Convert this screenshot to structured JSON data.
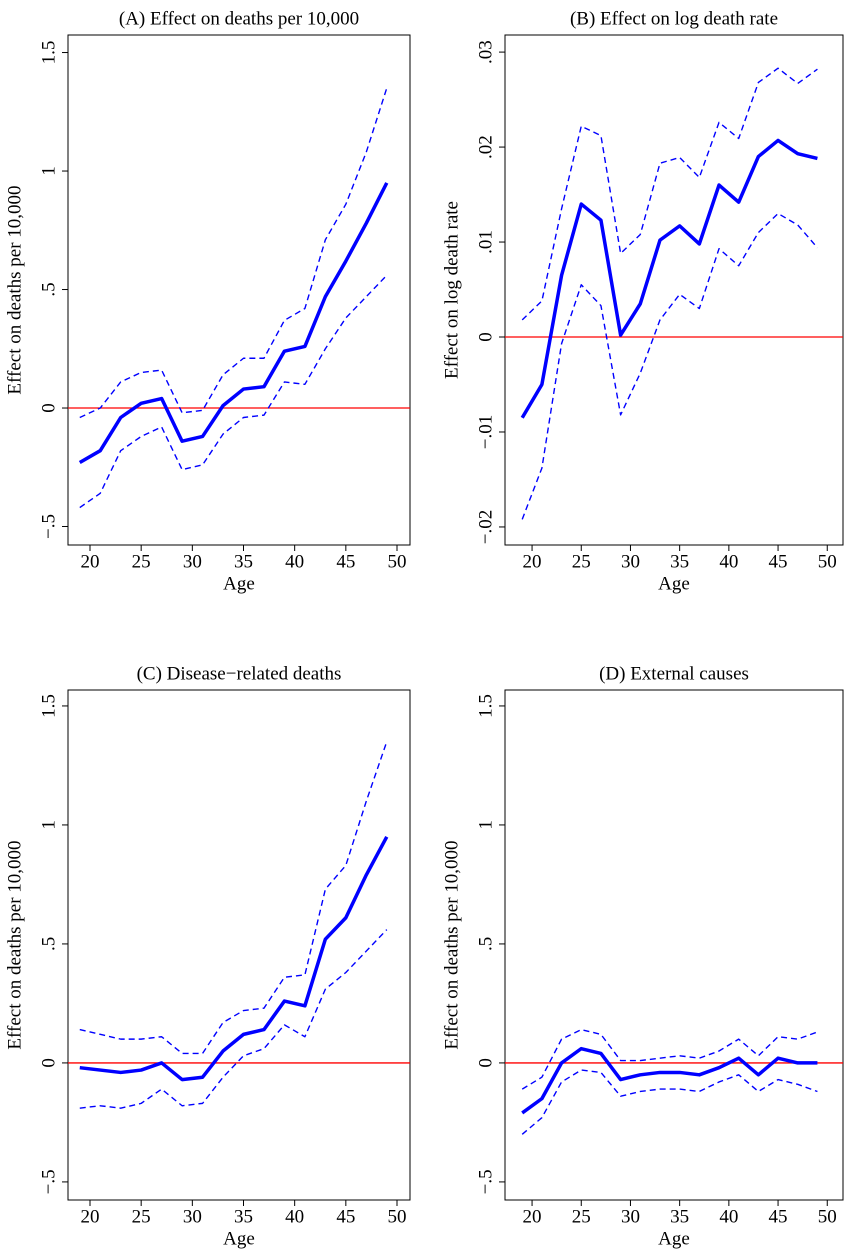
{
  "chart_data": [
    {
      "type": "line",
      "title": "(A) Effect on deaths per 10,000",
      "xlabel": "Age",
      "ylabel": "Effect on deaths per 10,000",
      "x": [
        19,
        21,
        23,
        25,
        27,
        29,
        31,
        33,
        35,
        37,
        39,
        41,
        43,
        45,
        47,
        49
      ],
      "series": [
        {
          "color": "#0000ff",
          "style": "solid",
          "values": [
            -0.23,
            -0.18,
            -0.04,
            0.02,
            0.04,
            -0.14,
            -0.12,
            0.01,
            0.08,
            0.09,
            0.24,
            0.26,
            0.47,
            0.62,
            0.78,
            0.95
          ]
        },
        {
          "color": "#0000ff",
          "style": "dashed",
          "values": [
            -0.04,
            0.0,
            0.11,
            0.15,
            0.16,
            -0.02,
            -0.01,
            0.14,
            0.21,
            0.21,
            0.37,
            0.42,
            0.71,
            0.86,
            1.08,
            1.35
          ]
        },
        {
          "color": "#0000ff",
          "style": "dashed",
          "values": [
            -0.42,
            -0.36,
            -0.18,
            -0.12,
            -0.08,
            -0.26,
            -0.24,
            -0.11,
            -0.04,
            -0.03,
            0.11,
            0.1,
            0.25,
            0.38,
            0.47,
            0.56
          ]
        }
      ],
      "reference_line": {
        "value": 0,
        "color": "#ff0000"
      },
      "xlim": [
        17.85,
        51.27
      ],
      "xticks": [
        20,
        25,
        30,
        35,
        40,
        45,
        50
      ],
      "ylim": [
        -0.578,
        1.574
      ],
      "yticks": [
        {
          "value": -0.5,
          "label": "−.5"
        },
        0,
        {
          "value": 0.5,
          "label": ".5"
        },
        1,
        1.5
      ]
    },
    {
      "type": "line",
      "title": "(B) Effect on log death rate",
      "xlabel": "Age",
      "ylabel": "Effect on log death rate",
      "x": [
        19,
        21,
        23,
        25,
        27,
        29,
        31,
        33,
        35,
        37,
        39,
        41,
        43,
        45,
        47,
        49
      ],
      "series": [
        {
          "color": "#0000ff",
          "style": "solid",
          "values": [
            -0.0085,
            -0.005,
            0.0065,
            0.014,
            0.0123,
            0.0002,
            0.0035,
            0.0102,
            0.0117,
            0.0098,
            0.016,
            0.0142,
            0.019,
            0.0207,
            0.0193,
            0.0188
          ]
        },
        {
          "color": "#0000ff",
          "style": "dashed",
          "values": [
            0.0018,
            0.0038,
            0.0135,
            0.0222,
            0.0212,
            0.0088,
            0.0108,
            0.0183,
            0.0189,
            0.0168,
            0.0226,
            0.0209,
            0.0268,
            0.0283,
            0.0267,
            0.0282
          ]
        },
        {
          "color": "#0000ff",
          "style": "dashed",
          "values": [
            -0.0192,
            -0.0138,
            -0.0007,
            0.0055,
            0.0033,
            -0.0082,
            -0.0038,
            0.0018,
            0.0045,
            0.003,
            0.0093,
            0.0075,
            0.011,
            0.013,
            0.0118,
            0.0094
          ]
        }
      ],
      "reference_line": {
        "value": 0,
        "color": "#ff0000"
      },
      "xlim": [
        17.25,
        51.6
      ],
      "xticks": [
        20,
        25,
        30,
        35,
        40,
        45,
        50
      ],
      "ylim": [
        -0.0219,
        0.0318
      ],
      "yticks": [
        {
          "value": -0.02,
          "label": "−.02"
        },
        {
          "value": -0.01,
          "label": "−.01"
        },
        0,
        {
          "value": 0.01,
          "label": ".01"
        },
        {
          "value": 0.02,
          "label": ".02"
        },
        {
          "value": 0.03,
          "label": ".03"
        }
      ]
    },
    {
      "type": "line",
      "title": "(C) Disease−related deaths",
      "xlabel": "Age",
      "ylabel": "Effect on deaths per 10,000",
      "x": [
        19,
        21,
        23,
        25,
        27,
        29,
        31,
        33,
        35,
        37,
        39,
        41,
        43,
        45,
        47,
        49
      ],
      "series": [
        {
          "color": "#0000ff",
          "style": "solid",
          "values": [
            -0.02,
            -0.03,
            -0.04,
            -0.03,
            0.0,
            -0.07,
            -0.06,
            0.05,
            0.12,
            0.14,
            0.26,
            0.24,
            0.52,
            0.61,
            0.79,
            0.95
          ]
        },
        {
          "color": "#0000ff",
          "style": "dashed",
          "values": [
            0.14,
            0.12,
            0.1,
            0.1,
            0.11,
            0.04,
            0.04,
            0.17,
            0.22,
            0.23,
            0.36,
            0.37,
            0.73,
            0.83,
            1.1,
            1.35
          ]
        },
        {
          "color": "#0000ff",
          "style": "dashed",
          "values": [
            -0.19,
            -0.18,
            -0.19,
            -0.17,
            -0.11,
            -0.18,
            -0.17,
            -0.06,
            0.03,
            0.06,
            0.16,
            0.11,
            0.31,
            0.38,
            0.47,
            0.56
          ]
        }
      ],
      "reference_line": {
        "value": 0,
        "color": "#ff0000"
      },
      "xlim": [
        17.85,
        51.27
      ],
      "xticks": [
        20,
        25,
        30,
        35,
        40,
        45,
        50
      ],
      "ylim": [
        -0.576,
        1.567
      ],
      "yticks": [
        {
          "value": -0.5,
          "label": "−.5"
        },
        0,
        {
          "value": 0.5,
          "label": ".5"
        },
        1,
        1.5
      ]
    },
    {
      "type": "line",
      "title": "(D) External causes",
      "xlabel": "Age",
      "ylabel": "Effect on deaths per 10,000",
      "x": [
        19,
        21,
        23,
        25,
        27,
        29,
        31,
        33,
        35,
        37,
        39,
        41,
        43,
        45,
        47,
        49
      ],
      "series": [
        {
          "color": "#0000ff",
          "style": "solid",
          "values": [
            -0.21,
            -0.15,
            0.0,
            0.06,
            0.04,
            -0.07,
            -0.05,
            -0.04,
            -0.04,
            -0.05,
            -0.02,
            0.02,
            -0.05,
            0.02,
            0.0,
            0.0
          ]
        },
        {
          "color": "#0000ff",
          "style": "dashed",
          "values": [
            -0.11,
            -0.06,
            0.1,
            0.14,
            0.12,
            0.01,
            0.01,
            0.02,
            0.03,
            0.02,
            0.05,
            0.1,
            0.03,
            0.11,
            0.1,
            0.13
          ]
        },
        {
          "color": "#0000ff",
          "style": "dashed",
          "values": [
            -0.3,
            -0.23,
            -0.08,
            -0.03,
            -0.04,
            -0.14,
            -0.12,
            -0.11,
            -0.11,
            -0.12,
            -0.08,
            -0.05,
            -0.12,
            -0.07,
            -0.09,
            -0.12
          ]
        }
      ],
      "reference_line": {
        "value": 0,
        "color": "#ff0000"
      },
      "xlim": [
        17.25,
        51.6
      ],
      "xticks": [
        20,
        25,
        30,
        35,
        40,
        45,
        50
      ],
      "ylim": [
        -0.576,
        1.567
      ],
      "yticks": [
        {
          "value": -0.5,
          "label": "−.5"
        },
        0,
        {
          "value": 0.5,
          "label": ".5"
        },
        1,
        1.5
      ]
    }
  ]
}
